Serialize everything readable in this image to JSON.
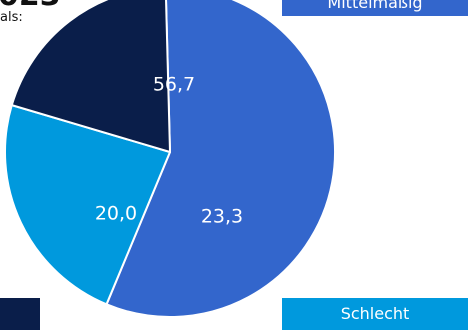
{
  "header": {
    "title_fragment": "023",
    "subtitle_fragment": "als:"
  },
  "legend": {
    "mittelmassig_label": "Mittelmäßig",
    "schlecht_label": "Schlecht",
    "dark_label": ""
  },
  "colors": {
    "mittelmassig": "#3366CC",
    "schlecht": "#0099DD",
    "dark": "#0A1E4A"
  },
  "chart_data": {
    "type": "pie",
    "decimal_separator": ",",
    "slices": [
      {
        "label": "56,7",
        "value": 56.7,
        "legend": "Mittelmäßig",
        "color": "#3366CC"
      },
      {
        "label": "23,3",
        "value": 23.3,
        "legend": "Schlecht",
        "color": "#0099DD"
      },
      {
        "label": "20,0",
        "value": 20.0,
        "legend": "",
        "color": "#0A1E4A"
      }
    ]
  }
}
